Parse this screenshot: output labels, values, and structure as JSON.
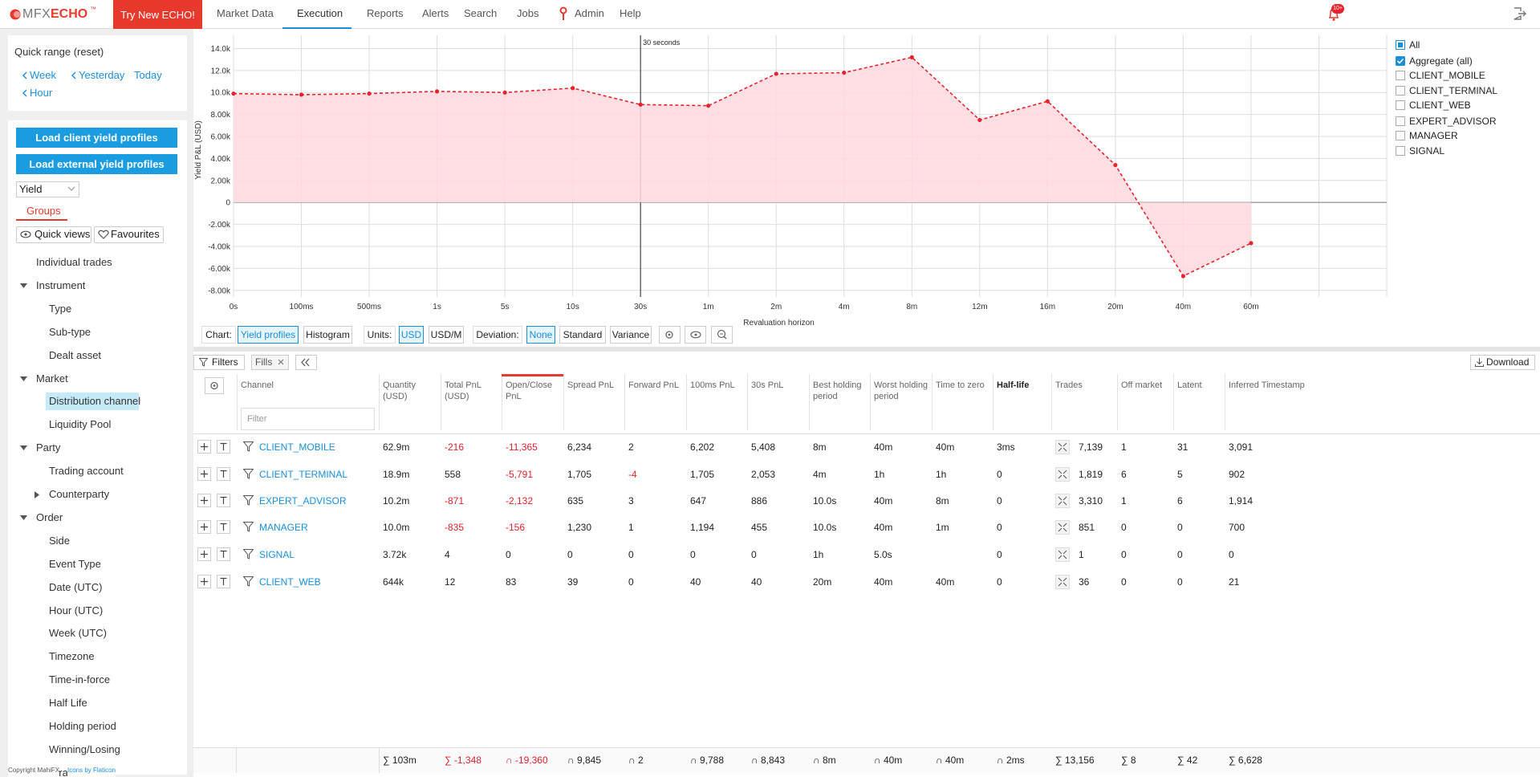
{
  "nav": {
    "logo": "MFX",
    "logo_bold": "ECHO",
    "logo_mark": "™",
    "cta": "Try New ECHO!",
    "items": [
      "Market Data",
      "Execution",
      "Reports",
      "Alerts",
      "Search",
      "Jobs",
      "Admin",
      "Help"
    ],
    "active": 1,
    "badge": "10+"
  },
  "sidebar": {
    "quick_range": "Quick range (reset)",
    "ranges": [
      {
        "label": "Week",
        "back": true
      },
      {
        "label": "Yesterday",
        "back": true
      },
      {
        "label": "Today",
        "back": false
      },
      {
        "label": "Hour",
        "back": true
      }
    ],
    "buttons": [
      "Load client yield profiles",
      "Load external yield profiles"
    ],
    "select": "Yield",
    "tab": "Groups",
    "views": [
      "Quick views",
      "Favourites"
    ],
    "tree": [
      {
        "label": "Individual trades"
      },
      {
        "label": "Instrument",
        "children": [
          {
            "label": "Type"
          },
          {
            "label": "Sub-type"
          },
          {
            "label": "Dealt asset"
          }
        ]
      },
      {
        "label": "Market",
        "children": [
          {
            "label": "Distribution channel",
            "selected": true
          },
          {
            "label": "Liquidity Pool"
          }
        ]
      },
      {
        "label": "Party",
        "children": [
          {
            "label": "Trading account"
          },
          {
            "label": "Counterparty",
            "collapsed": true
          }
        ]
      },
      {
        "label": "Order",
        "children": [
          {
            "label": "Side"
          },
          {
            "label": "Event Type"
          },
          {
            "label": "Date (UTC)"
          },
          {
            "label": "Hour (UTC)"
          },
          {
            "label": "Week (UTC)"
          },
          {
            "label": "Timezone"
          },
          {
            "label": "Time-in-force"
          },
          {
            "label": "Half Life"
          },
          {
            "label": "Holding period"
          },
          {
            "label": "Winning/Losing"
          },
          {
            "label": "Strategy"
          }
        ]
      }
    ],
    "copyright": "Copyright MahiFX",
    "credit": "Icons by Flaticon"
  },
  "chart_data": {
    "type": "area",
    "y_label": "Yield P&L (USD)",
    "x_label": "Revaluation horizon",
    "categories": [
      "0s",
      "100ms",
      "500ms",
      "1s",
      "5s",
      "10s",
      "30s",
      "1m",
      "2m",
      "4m",
      "8m",
      "12m",
      "16m",
      "20m",
      "40m",
      "60m",
      null,
      null
    ],
    "series": [
      {
        "name": "Aggregate (all)",
        "color": "#e8232e",
        "fill": "#ffd9de",
        "visible": true,
        "values": [
          9900,
          9800,
          9900,
          10100,
          10000,
          10400,
          8900,
          8800,
          11700,
          11800,
          13200,
          7500,
          9200,
          3400,
          -6700,
          -3700,
          null,
          null
        ]
      }
    ],
    "ylim": [
      -8600,
      15200
    ],
    "yticks": [
      {
        "value": 14000,
        "label": "14.0k"
      },
      {
        "value": 12000,
        "label": "12.0k"
      },
      {
        "value": 10000,
        "label": "10.0k"
      },
      {
        "value": 8000,
        "label": "8.00k"
      },
      {
        "value": 6000,
        "label": "6.00k"
      },
      {
        "value": 4000,
        "label": "4.00k"
      },
      {
        "value": 2000,
        "label": "2.00k"
      },
      0,
      {
        "value": -2000,
        "label": "-2.00k"
      },
      {
        "value": -4000,
        "label": "-4.00k"
      },
      {
        "value": -6000,
        "label": "-6.00k"
      },
      {
        "value": -8000,
        "label": "-8.00k"
      }
    ],
    "grid": true,
    "annotation": {
      "text": "30 seconds",
      "x": "30s"
    },
    "legend": {
      "position": "right",
      "all": {
        "label": "All",
        "state": "partial"
      },
      "options": [
        "CLIENT_MOBILE",
        "CLIENT_TERMINAL",
        "CLIENT_WEB",
        "EXPERT_ADVISOR",
        "MANAGER",
        "SIGNAL"
      ]
    }
  },
  "chart_controls": {
    "groups": [
      {
        "label": "Chart:",
        "options": [
          "Yield profiles",
          "Histogram"
        ],
        "selected": 0
      },
      {
        "label": "Units:",
        "options": [
          "USD",
          "USD/M"
        ],
        "selected": 0
      },
      {
        "label": "Deviation:",
        "options": [
          "None",
          "Standard",
          "Variance"
        ],
        "selected": 0
      }
    ]
  },
  "table": {
    "toolbar": {
      "filters": "Filters",
      "fills": "Fills",
      "download": "Download"
    },
    "filter_placeholder": "Filter",
    "columns": [
      "Channel",
      "Quantity (USD)",
      "Total PnL (USD)",
      "Open/Close PnL",
      "Spread PnL",
      "Forward PnL",
      "100ms PnL",
      "30s PnL",
      "Best holding period",
      "Worst holding period",
      "Time to zero",
      "Half-life",
      "Trades",
      "Off market",
      "Latent",
      "Inferred Timestamp"
    ],
    "sorted_column": 3,
    "bold_column": 11,
    "rows": [
      [
        "CLIENT_MOBILE",
        "62.9m",
        "-216",
        "-11,365",
        "6,234",
        "2",
        "6,202",
        "5,408",
        "8m",
        "40m",
        "40m",
        "3ms",
        "7,139",
        "1",
        "31",
        "3,091"
      ],
      [
        "CLIENT_TERMINAL",
        "18.9m",
        "558",
        "-5,791",
        "1,705",
        "-4",
        "1,705",
        "2,053",
        "4m",
        "1h",
        "1h",
        "0",
        "1,819",
        "6",
        "5",
        "902"
      ],
      [
        "EXPERT_ADVISOR",
        "10.2m",
        "-871",
        "-2,132",
        "635",
        "3",
        "647",
        "886",
        "10.0s",
        "40m",
        "8m",
        "0",
        "3,310",
        "1",
        "6",
        "1,914"
      ],
      [
        "MANAGER",
        "10.0m",
        "-835",
        "-156",
        "1,230",
        "1",
        "1,194",
        "455",
        "10.0s",
        "40m",
        "1m",
        "0",
        "851",
        "0",
        "0",
        "700"
      ],
      [
        "SIGNAL",
        "3.72k",
        "4",
        "0",
        "0",
        "0",
        "0",
        "0",
        "1h",
        "5.0s",
        null,
        "0",
        "1",
        "0",
        "0",
        "0"
      ],
      [
        "CLIENT_WEB",
        "644k",
        "12",
        "83",
        "39",
        "0",
        "40",
        "40",
        "20m",
        "40m",
        "40m",
        "0",
        "36",
        "0",
        "0",
        "21"
      ]
    ],
    "footer": [
      "∑ 103m",
      "∑ -1,348",
      "∩ -19,360",
      "∩ 9,845",
      "∩ 2",
      "∩ 9,788",
      "∩ 8,843",
      "∩ 8m",
      "∩ 40m",
      "∩ 40m",
      "∩ 2ms",
      "∑ 13,156",
      "∑ 8",
      "∑ 42",
      "∑ 6,628"
    ]
  }
}
